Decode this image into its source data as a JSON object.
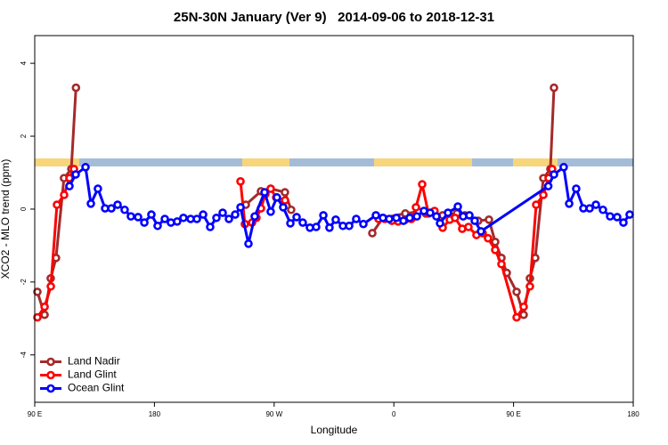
{
  "chart_data": {
    "type": "line",
    "title": "25N-30N January (Ver 9)   2014-09-06 to 2018-12-31",
    "x_label": "Longitude",
    "y_label": "XCO2 - MLO trend (ppm)",
    "xlim": [
      90,
      540
    ],
    "ylim": [
      -5.3,
      4.76
    ],
    "xticks": [
      {
        "value": 90,
        "label": "90 E"
      },
      180,
      {
        "value": 270,
        "label": "90 W"
      },
      {
        "value": 360,
        "label": "0"
      },
      {
        "value": 450,
        "label": "90 E"
      },
      {
        "value": 540,
        "label": "180"
      }
    ],
    "yticks": [
      4,
      2,
      0,
      -2,
      -4
    ],
    "legend": "bottom-left",
    "series": [
      {
        "name": "Land Nadir",
        "color": "#a52a2a",
        "x": [
          92,
          97.4,
          102,
          106,
          112,
          117.5,
          121,
          null,
          248.7,
          260.1,
          267.4,
          278.1,
          282.8,
          null,
          343.8,
          351.8,
          368.6,
          378.6,
          384,
          396.7,
          407.4,
          413.4,
          423.4,
          431.5,
          436.2,
          440.9,
          444.9,
          452.3,
          457.6,
          462.3,
          466.3,
          472.4,
          477.7,
          480.4
        ],
        "values": [
          -2.27,
          -2.9,
          -1.9,
          -1.34,
          0.85,
          1.1,
          3.33,
          null,
          0.12,
          0.49,
          0.56,
          0.46,
          -0.02,
          null,
          -0.66,
          -0.24,
          -0.12,
          -0.07,
          -0.12,
          -0.17,
          -0.12,
          -0.17,
          -0.32,
          -0.29,
          -0.9,
          -1.34,
          -1.75,
          -2.27,
          -2.9,
          -1.9,
          -1.34,
          0.85,
          1.1,
          3.33
        ]
      },
      {
        "name": "Land Glint",
        "color": "#ff0000",
        "x": [
          92,
          97.4,
          102.1,
          106.7,
          112.1,
          116.1,
          119.5,
          null,
          244.7,
          248,
          253.4,
          256.7,
          260.1,
          263.4,
          267.4,
          271.5,
          278.2,
          null,
          348.5,
          353.2,
          358.5,
          363.2,
          368.6,
          373.2,
          376.6,
          381.3,
          386,
          390.6,
          396.7,
          402,
          406,
          411.4,
          416.1,
          422.1,
          426.8,
          430.8,
          436.2,
          440.9,
          452.3,
          457.6,
          462.3,
          467,
          472.4,
          476.4,
          479
        ],
        "values": [
          -2.97,
          -2.68,
          -2.12,
          0.12,
          0.39,
          0.85,
          1.1,
          null,
          0.76,
          -0.41,
          -0.37,
          -0.24,
          0.02,
          0.41,
          0.56,
          0.32,
          0.24,
          null,
          -0.27,
          -0.27,
          -0.32,
          -0.34,
          -0.29,
          -0.27,
          0.05,
          0.68,
          -0.12,
          -0.05,
          -0.51,
          -0.29,
          -0.24,
          -0.54,
          -0.49,
          -0.71,
          -0.66,
          -0.8,
          -1.12,
          -1.51,
          -2.97,
          -2.68,
          -2.12,
          0.12,
          0.39,
          0.85,
          1.1
        ]
      },
      {
        "name": "Ocean Glint",
        "color": "#0000ff",
        "x": [
          116.1,
          120.8,
          128.2,
          132.2,
          137.5,
          142.9,
          147.6,
          152.3,
          157.6,
          162.3,
          167.7,
          172.4,
          177.7,
          182.4,
          187.8,
          192.4,
          197.1,
          201.8,
          207.2,
          211.9,
          216.6,
          221.9,
          226.6,
          231.3,
          236,
          240.7,
          244.7,
          250.7,
          255.4,
          262.8,
          267.4,
          272.1,
          276.8,
          282.2,
          286.9,
          291.5,
          296.9,
          301.6,
          307,
          311.6,
          316.3,
          321.7,
          326.4,
          331.7,
          337.1,
          346.5,
          351.8,
          356.5,
          361.9,
          367.2,
          371.9,
          377.3,
          382.6,
          387.3,
          392,
          394.7,
          400.7,
          408.1,
          412.1,
          416.8,
          420.8,
          425.5,
          476.1,
          480.4,
          487.7,
          491.8,
          497.1,
          502.5,
          507.2,
          511.9,
          517.2,
          522.6,
          527.9,
          532.6,
          537.3
        ],
        "values": [
          0.63,
          0.95,
          1.15,
          0.15,
          0.56,
          0.02,
          0.02,
          0.12,
          -0.02,
          -0.2,
          -0.22,
          -0.37,
          -0.15,
          -0.46,
          -0.27,
          -0.37,
          -0.34,
          -0.24,
          -0.27,
          -0.27,
          -0.15,
          -0.49,
          -0.24,
          -0.1,
          -0.27,
          -0.15,
          0.05,
          -0.95,
          -0.2,
          0.46,
          -0.07,
          0.32,
          0.05,
          -0.39,
          -0.22,
          -0.37,
          -0.51,
          -0.49,
          -0.17,
          -0.51,
          -0.29,
          -0.46,
          -0.46,
          -0.27,
          -0.41,
          -0.17,
          -0.24,
          -0.27,
          -0.24,
          -0.32,
          -0.24,
          -0.2,
          -0.05,
          -0.1,
          -0.2,
          -0.39,
          -0.1,
          0.07,
          -0.2,
          -0.17,
          -0.32,
          -0.61,
          0.63,
          0.95,
          1.15,
          0.15,
          0.56,
          0.02,
          0.02,
          0.12,
          -0.02,
          -0.2,
          -0.22,
          -0.37,
          -0.15
        ]
      }
    ]
  }
}
